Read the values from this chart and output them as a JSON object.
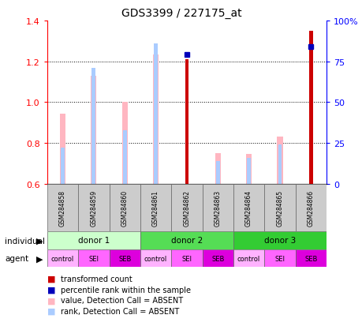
{
  "title": "GDS3399 / 227175_at",
  "samples": [
    "GSM284858",
    "GSM284859",
    "GSM284860",
    "GSM284861",
    "GSM284862",
    "GSM284863",
    "GSM284864",
    "GSM284865",
    "GSM284866"
  ],
  "red_values": [
    null,
    null,
    null,
    null,
    1.21,
    null,
    null,
    null,
    1.35
  ],
  "blue_pct": [
    null,
    null,
    null,
    null,
    79.0,
    null,
    null,
    null,
    84.0
  ],
  "pink_values": [
    0.945,
    1.13,
    1.0,
    1.235,
    null,
    0.75,
    0.745,
    0.83,
    null
  ],
  "lightblue_pct": [
    22.0,
    71.0,
    33.0,
    86.0,
    null,
    14.0,
    16.0,
    24.0,
    null
  ],
  "ylim_left": [
    0.6,
    1.4
  ],
  "ylim_right": [
    0,
    100
  ],
  "yticks_left": [
    0.6,
    0.8,
    1.0,
    1.2,
    1.4
  ],
  "yticks_right": [
    0,
    25,
    50,
    75,
    100
  ],
  "ytick_labels_right": [
    "0",
    "25",
    "50",
    "75",
    "100%"
  ],
  "grid_lines": [
    0.8,
    1.0,
    1.2
  ],
  "donors": [
    {
      "label": "donor 1",
      "start": 0,
      "end": 3,
      "color": "#CCFFCC"
    },
    {
      "label": "donor 2",
      "start": 3,
      "end": 6,
      "color": "#55DD55"
    },
    {
      "label": "donor 3",
      "start": 6,
      "end": 9,
      "color": "#33CC33"
    }
  ],
  "agents": [
    "control",
    "SEI",
    "SEB",
    "control",
    "SEI",
    "SEB",
    "control",
    "SEI",
    "SEB"
  ],
  "agent_color_map": {
    "control": "#FFB3FF",
    "SEI": "#FF66FF",
    "SEB": "#DD00DD"
  },
  "color_red": "#CC0000",
  "color_blue": "#0000BB",
  "color_pink": "#FFB6C1",
  "color_lightblue": "#AACCFF",
  "pink_bar_width": 0.18,
  "red_bar_width": 0.12,
  "lb_marker_size": 4,
  "blue_marker_size": 5
}
